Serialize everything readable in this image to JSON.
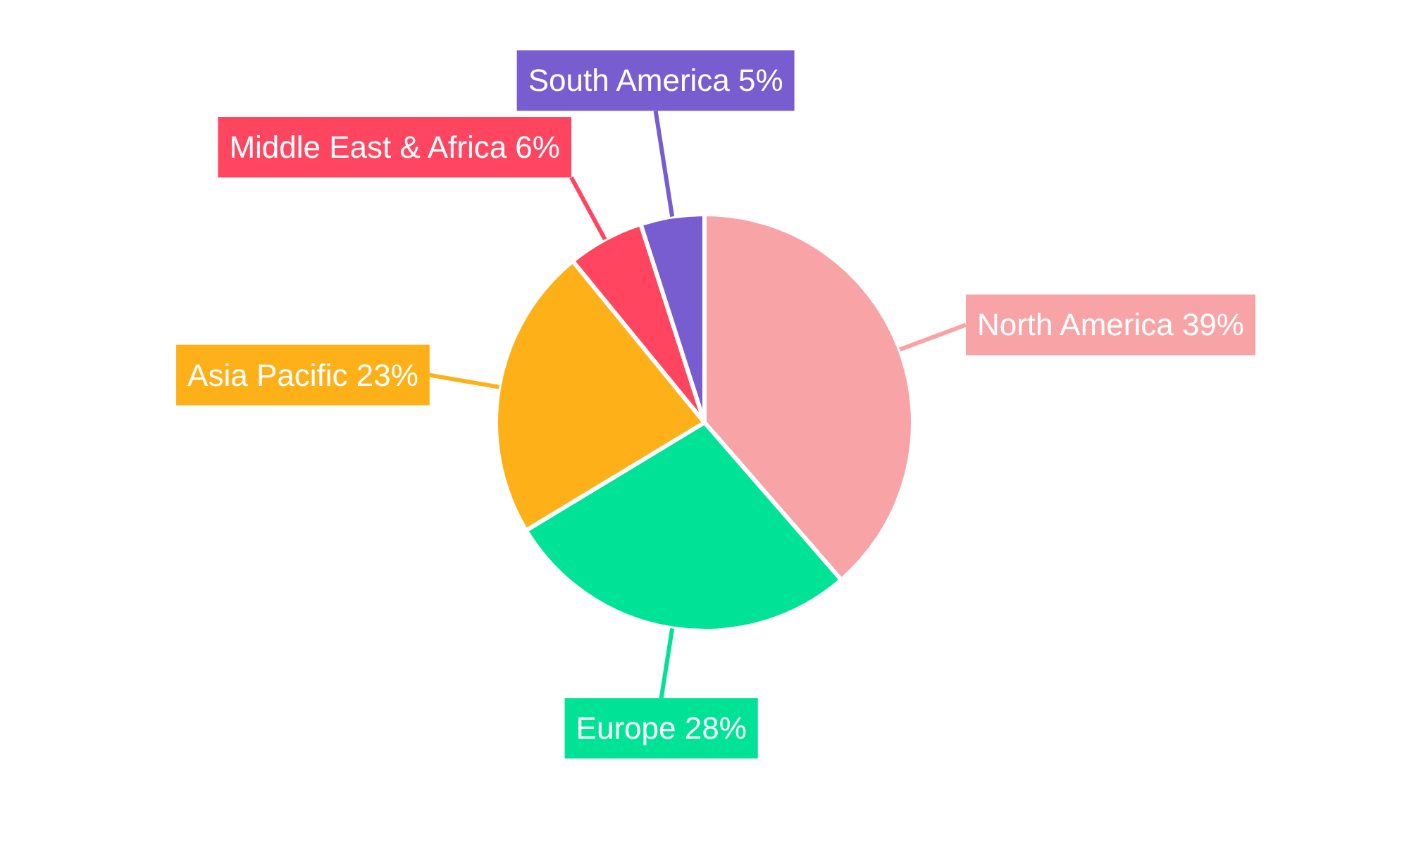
{
  "chart_data": {
    "type": "pie",
    "categories": [
      "North America",
      "Europe",
      "Asia Pacific",
      "Middle East & Africa",
      "South America"
    ],
    "values": [
      39,
      28,
      23,
      6,
      5
    ],
    "value_labels": [
      "39%",
      "28%",
      "23%",
      "6%",
      "5%"
    ],
    "colors": [
      "#f8a4a6",
      "#00e396",
      "#feb019",
      "#ff4560",
      "#775dd0"
    ]
  }
}
